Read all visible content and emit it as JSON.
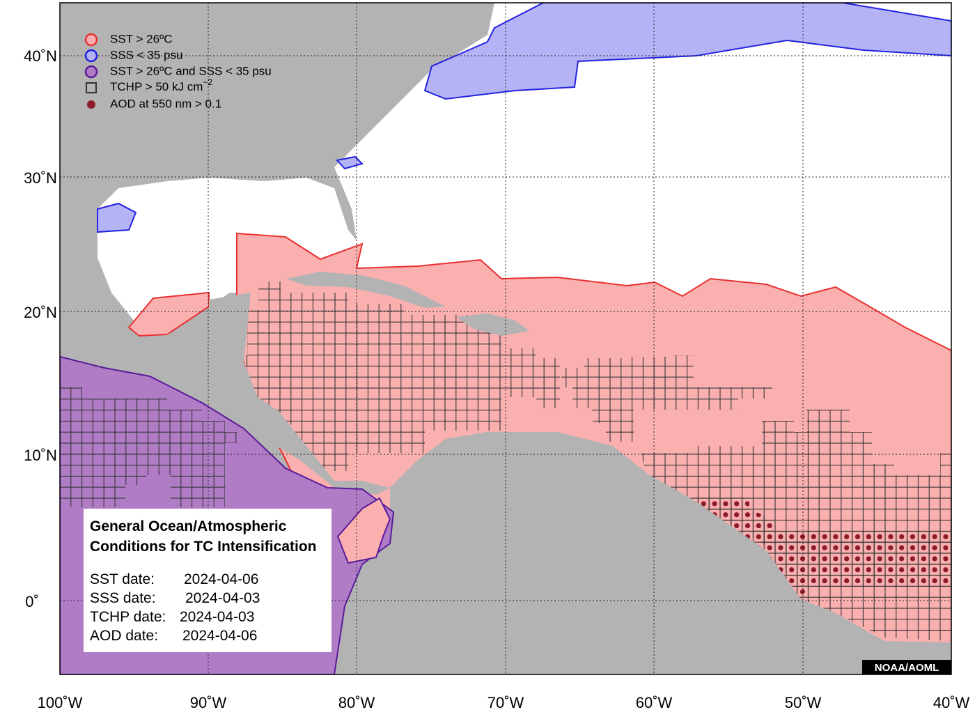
{
  "legend": {
    "items": [
      {
        "label": "SST > 26ºC"
      },
      {
        "label": "SSS < 35 psu"
      },
      {
        "label": "SST > 26ºC and SSS < 35 psu"
      },
      {
        "label": "TCHP > 50 kJ cm",
        "superscript": "−2"
      },
      {
        "label": "AOD at 550 nm > 0.1"
      }
    ]
  },
  "info_box": {
    "title_lines": [
      "General Ocean/Atmospheric",
      "Conditions for TC Intensification"
    ],
    "dates": [
      {
        "label": "SST date:",
        "value": "2024-04-06"
      },
      {
        "label": "SSS date:",
        "value": "2024-04-03"
      },
      {
        "label": "TCHP date:",
        "value": "2024-04-03"
      },
      {
        "label": "AOD date:",
        "value": "2024-04-06"
      }
    ]
  },
  "axes": {
    "longitude_labels": [
      "100˚W",
      "90˚W",
      "80˚W",
      "70˚W",
      "60˚W",
      "50˚W",
      "40˚W"
    ],
    "latitude_labels": [
      "40˚N",
      "30˚N",
      "20˚N",
      "10˚N",
      "0˚"
    ]
  },
  "credit": "NOAA/AOML"
}
